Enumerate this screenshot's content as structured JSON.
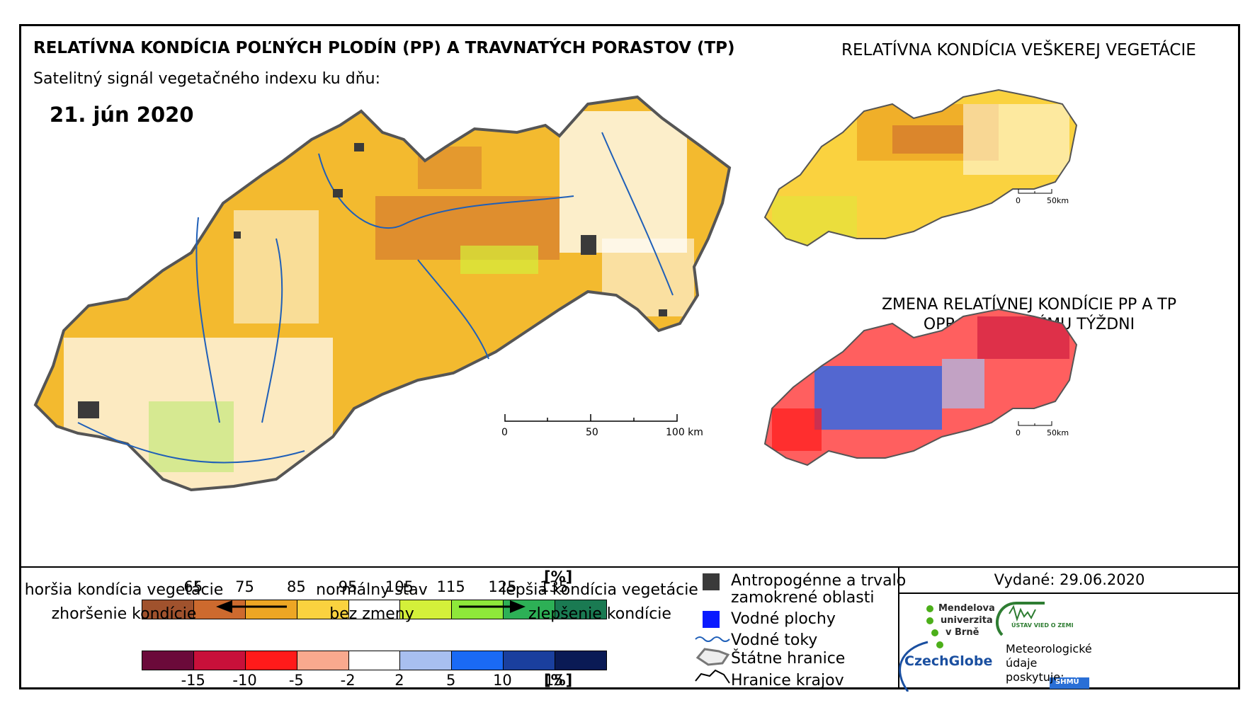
{
  "titles": {
    "main": "RELATÍVNA KONDÍCIA POĽNÝCH PLODÍN (PP) A TRAVNATÝCH PORASTOV (TP)",
    "subtitle": "Satelitný signál vegetačného indexu ku dňu:",
    "date": "21. jún 2020",
    "vegetation": "RELATÍVNA KONDÍCIA VEŠKEREJ VEGETÁCIE",
    "change_line1": "ZMENA RELATÍVNEJ KONDÍCIE PP A TP",
    "change_line2": "OPROTI MINULÉMU TÝŽDNI"
  },
  "scalebars": {
    "main": {
      "ticks": [
        "0",
        "50",
        "100 km"
      ]
    },
    "inset_vegetation": {
      "ticks": [
        "0",
        "50km"
      ]
    },
    "inset_change": {
      "ticks": [
        "0",
        "50km"
      ]
    }
  },
  "legend_condition": {
    "unit": "[%]",
    "ticks": [
      "65",
      "75",
      "85",
      "95",
      "105",
      "115",
      "125",
      "135"
    ],
    "colors": [
      "#a0522d",
      "#cd6a2e",
      "#eda624",
      "#fad23f",
      "#ffffff",
      "#d4f03a",
      "#8ee83a",
      "#2db056",
      "#1a7a52"
    ]
  },
  "legend_change": {
    "unit": "[%]",
    "ticks": [
      "-15",
      "-10",
      "-5",
      "-2",
      "2",
      "5",
      "10",
      "15"
    ],
    "colors": [
      "#6b0a3a",
      "#c8103a",
      "#ff1a1a",
      "#f9a98e",
      "#ffffff",
      "#a8bff0",
      "#1a6af5",
      "#1a3f9e",
      "#0a1a55"
    ]
  },
  "legend_texts": {
    "worse_condition": "horšia kondícia vegetácie",
    "worsening": "zhoršenie kondície",
    "normal": "normálny stav",
    "no_change": "bez zmeny",
    "better_condition": "lepšia kondícia vegetácie",
    "improvement": "zlepšenie kondície"
  },
  "legend_symbols": {
    "anthropogenic": "Antropogénne a trvalo",
    "anthropogenic2": "zamokrené oblasti",
    "water_bodies": "Vodné plochy",
    "rivers": "Vodné toky",
    "borders": "Štátne hranice",
    "regions": "Hranice krajov"
  },
  "issued": "Vydané: 29.06.2020",
  "logos": {
    "mendel_1": "Mendelova",
    "mendel_2": "univerzita",
    "mendel_3": "v Brně",
    "ustav": "ÚSTAV VIED O ZEMI",
    "czechglobe": "CzechGlobe",
    "meteo_1": "Meteorologické",
    "meteo_2": "údaje",
    "meteo_3": "poskytuje:",
    "shmu": "SHMÚ"
  },
  "colors": {
    "orange": "#eda624",
    "yellow": "#fad23f",
    "brown": "#cd6a2e",
    "green": "#8ee83a",
    "river": "#1f5fb8",
    "urban": "#3a3a3a"
  }
}
